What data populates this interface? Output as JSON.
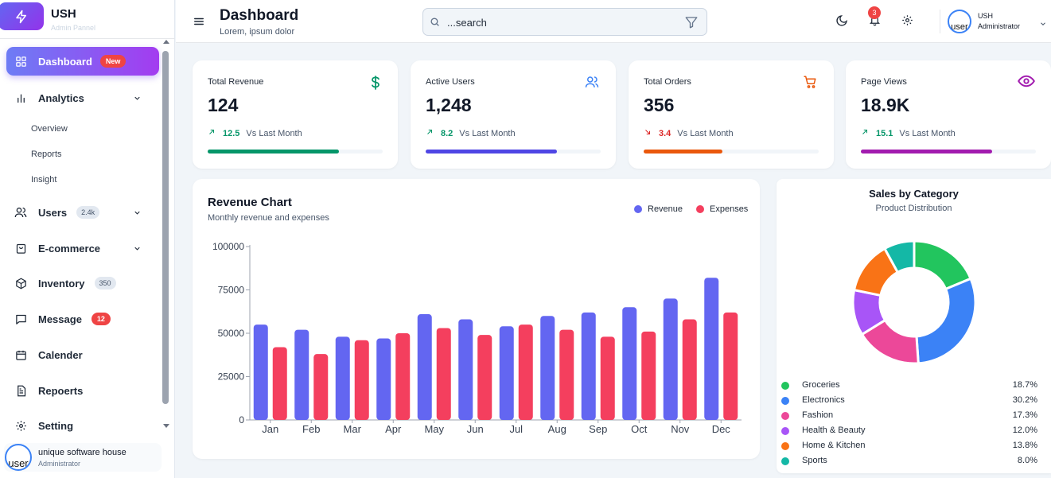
{
  "brand": {
    "title": "USH",
    "subtitle": "Admin Pannel"
  },
  "sidebar": {
    "items": [
      {
        "label": "Dashboard",
        "badge": "New"
      },
      {
        "label": "Analytics"
      },
      {
        "label": "Users",
        "badge": "2.4k"
      },
      {
        "label": "E-commerce"
      },
      {
        "label": "Inventory",
        "badge": "350"
      },
      {
        "label": "Message",
        "badge": "12"
      },
      {
        "label": "Calender"
      },
      {
        "label": "Repoerts"
      },
      {
        "label": "Setting"
      }
    ],
    "analytics_sub": [
      "Overview",
      "Reports",
      "Insight"
    ],
    "user": {
      "name": "unique software house",
      "role": "Administrator",
      "avatar_alt": "user"
    }
  },
  "header": {
    "title": "Dashboard",
    "subtitle": "Lorem, ipsum dolor",
    "search_placeholder": "...search",
    "notification_count": "3",
    "user_name": "USH",
    "user_role": "Administrator",
    "avatar_alt": "user"
  },
  "stats": [
    {
      "label": "Total Revenue",
      "value": "124",
      "change": "12.5",
      "vs": "Vs Last Month",
      "direction": "up",
      "progress": 0.75,
      "color": "#059669",
      "icon": "dollar-icon"
    },
    {
      "label": "Active Users",
      "value": "1,248",
      "change": "8.2",
      "vs": "Vs Last Month",
      "direction": "up",
      "progress": 0.75,
      "color": "#4f46e5",
      "icon": "users-icon"
    },
    {
      "label": "Total Orders",
      "value": "356",
      "change": "3.4",
      "vs": "Vs Last Month",
      "direction": "down",
      "progress": 0.45,
      "color": "#ea580c",
      "icon": "cart-icon"
    },
    {
      "label": "Page Views",
      "value": "18.9K",
      "change": "15.1",
      "vs": "Vs Last Month",
      "direction": "up",
      "progress": 0.75,
      "color": "#a21caf",
      "icon": "eye-icon"
    }
  ],
  "revenue_chart": {
    "title": "Revenue Chart",
    "subtitle": "Monthly revenue and expenses"
  },
  "sales_chart": {
    "title": "Sales by Category",
    "subtitle": "Product Distribution"
  },
  "chart_data": [
    {
      "type": "bar",
      "title": "Revenue Chart",
      "subtitle": "Monthly revenue and expenses",
      "categories": [
        "Jan",
        "Feb",
        "Mar",
        "Apr",
        "May",
        "Jun",
        "Jul",
        "Aug",
        "Sep",
        "Oct",
        "Nov",
        "Dec"
      ],
      "series": [
        {
          "name": "Revenue",
          "color": "#6366f1",
          "values": [
            55000,
            52000,
            48000,
            47000,
            61000,
            58000,
            54000,
            60000,
            62000,
            65000,
            70000,
            82000
          ]
        },
        {
          "name": "Expenses",
          "color": "#f43f5e",
          "values": [
            42000,
            38000,
            46000,
            50000,
            53000,
            49000,
            55000,
            52000,
            48000,
            51000,
            58000,
            62000
          ]
        }
      ],
      "yticks": [
        "0",
        "25000",
        "50000",
        "75000",
        "100000"
      ],
      "ylim": [
        0,
        100000
      ],
      "legend": "top-right",
      "grid": false
    },
    {
      "type": "pie",
      "title": "Sales by Category",
      "subtitle": "Product Distribution",
      "donut": true,
      "slices": [
        {
          "name": "Groceries",
          "pct": "18.7%",
          "value": 18.7,
          "color": "#22c55e"
        },
        {
          "name": "Electronics",
          "pct": "30.2%",
          "value": 30.2,
          "color": "#3b82f6"
        },
        {
          "name": "Fashion",
          "pct": "17.3%",
          "value": 17.3,
          "color": "#ec4899"
        },
        {
          "name": "Health & Beauty",
          "pct": "12.0%",
          "value": 12.0,
          "color": "#a855f7"
        },
        {
          "name": "Home & Kitchen",
          "pct": "13.8%",
          "value": 13.8,
          "color": "#f97316"
        },
        {
          "name": "Sports",
          "pct": "8.0%",
          "value": 8.0,
          "color": "#14b8a6"
        }
      ],
      "legend": "bottom"
    }
  ]
}
